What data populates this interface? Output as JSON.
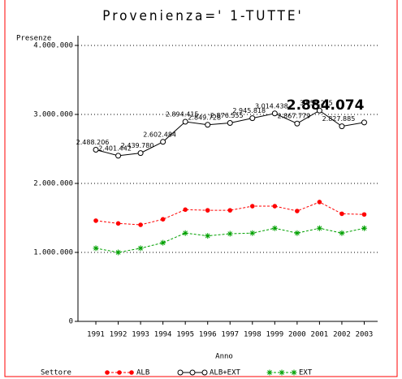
{
  "chart_data": {
    "type": "line",
    "title": "Provenienza=' 1-TUTTE'",
    "y_label": "Presenze",
    "x_label": "Anno",
    "legend_title": "Settore",
    "x": [
      1991,
      1992,
      1993,
      1994,
      1995,
      1996,
      1997,
      1998,
      1999,
      2000,
      2001,
      2002,
      2003
    ],
    "xlim": [
      1990.2,
      2003.6
    ],
    "xticks": [
      1991,
      1992,
      1993,
      1994,
      1995,
      1996,
      1997,
      1998,
      1999,
      2000,
      2001,
      2002,
      2003
    ],
    "ylim": [
      0,
      4000000
    ],
    "yticks": [
      {
        "value": 0,
        "label": "0"
      },
      {
        "value": 1000000,
        "label": "1.000.000"
      },
      {
        "value": 2000000,
        "label": "2.000.000"
      },
      {
        "value": 3000000,
        "label": "3.000.000"
      },
      {
        "value": 4000000,
        "label": "4.000.000"
      }
    ],
    "grid": true,
    "series": [
      {
        "name": "ALB",
        "color": "#ff0000",
        "marker": "dot",
        "values": [
          1460000,
          1420000,
          1400000,
          1480000,
          1620000,
          1610000,
          1610000,
          1670000,
          1670000,
          1600000,
          1730000,
          1560000,
          1550000
        ]
      },
      {
        "name": "ALB+EXT",
        "color": "#000000",
        "marker": "circle",
        "values": [
          2488206,
          2401442,
          2439780,
          2602484,
          2894415,
          2849728,
          2876555,
          2945818,
          3014438,
          2867779,
          3056215,
          2827885,
          2884074
        ],
        "value_labels": [
          "2.488.206",
          "2.401.442",
          "2.439.780",
          "2.602.484",
          "2.894.415",
          "2.849.728",
          "2.876.555",
          "2.945.818",
          "3.014.438",
          "2.867.779",
          "3.056.215",
          "2.827.885",
          "2.884.074"
        ]
      },
      {
        "name": "EXT",
        "color": "#00a000",
        "marker": "star",
        "values": [
          1060000,
          1000000,
          1060000,
          1140000,
          1280000,
          1240000,
          1270000,
          1280000,
          1350000,
          1280000,
          1350000,
          1280000,
          1350000
        ]
      }
    ]
  }
}
